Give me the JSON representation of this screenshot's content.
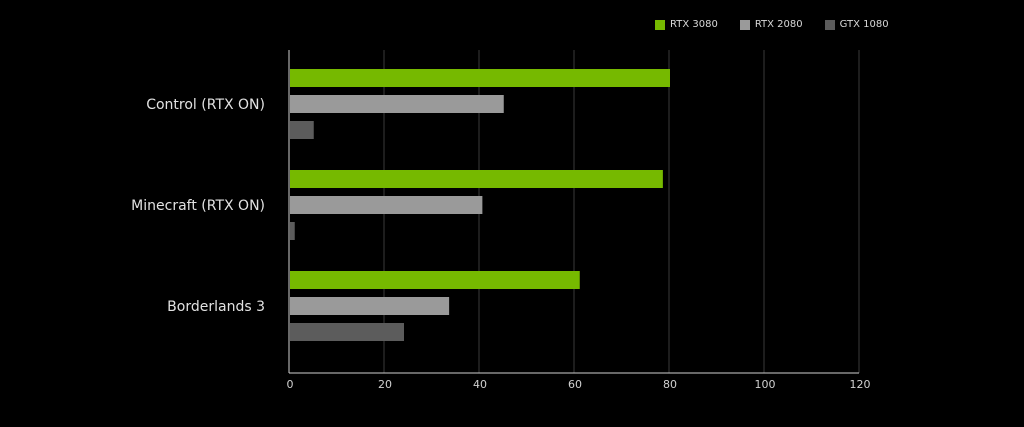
{
  "chart_data": {
    "type": "bar",
    "orientation": "horizontal",
    "categories": [
      "Control (RTX ON)",
      "Minecraft (RTX ON)",
      "Borderlands 3"
    ],
    "series": [
      {
        "name": "RTX 3080",
        "color": "#76b900",
        "values": [
          80,
          78.5,
          61
        ]
      },
      {
        "name": "RTX 2080",
        "color": "#9a9a9a",
        "values": [
          45,
          40.5,
          33.5
        ]
      },
      {
        "name": "GTX 1080",
        "color": "#5c5c5c",
        "values": [
          5,
          1,
          24
        ]
      }
    ],
    "xlim": [
      0,
      120
    ],
    "xticks": [
      "0",
      "20",
      "40",
      "60",
      "80",
      "100",
      "120"
    ],
    "grid": "vertical",
    "legend_position": "top-right",
    "title": "",
    "xlabel": "",
    "ylabel": ""
  }
}
